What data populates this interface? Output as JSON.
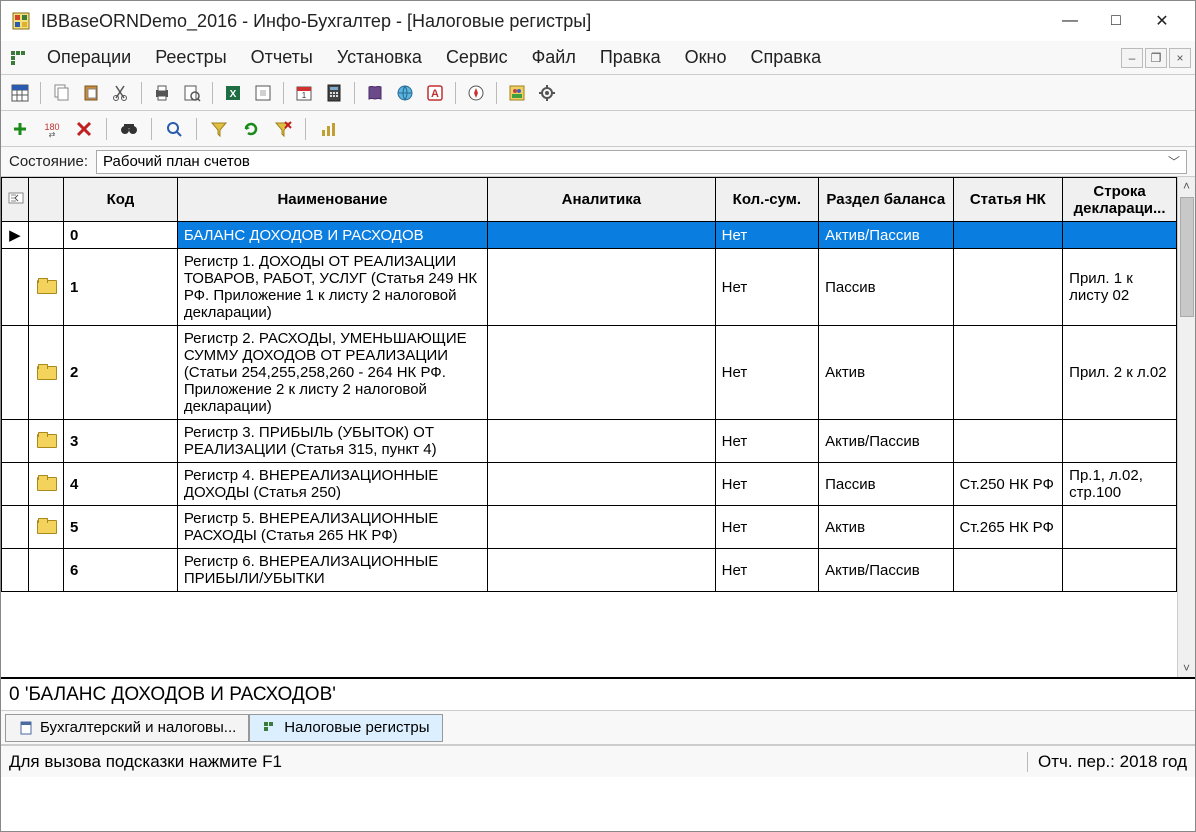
{
  "window": {
    "title": "IBBaseORNDemo_2016 - Инфо-Бухгалтер - [Налоговые регистры]"
  },
  "menu": {
    "items": [
      "Операции",
      "Реестры",
      "Отчеты",
      "Установка",
      "Сервис",
      "Файл",
      "Правка",
      "Окно",
      "Справка"
    ]
  },
  "state": {
    "label": "Состояние:",
    "value": "Рабочий план счетов"
  },
  "columns": {
    "code": "Код",
    "name": "Наименование",
    "analytics": "Аналитика",
    "kolsum": "Кол.-сум.",
    "section": "Раздел баланса",
    "article": "Статья НК",
    "line": "Строка деклараци..."
  },
  "rows": [
    {
      "indicator": "▶",
      "folder": false,
      "code": "0",
      "name": "БАЛАНС ДОХОДОВ И РАСХОДОВ",
      "analytics": "",
      "kolsum": "Нет",
      "section": "Актив/Пассив",
      "article": "",
      "line": "",
      "selected": true
    },
    {
      "indicator": "",
      "folder": true,
      "code": "1",
      "name": "Регистр 1. ДОХОДЫ ОТ РЕАЛИЗАЦИИ ТОВАРОВ, РАБОТ, УСЛУГ (Статья 249 НК РФ. Приложение 1 к листу 2 налоговой декларации)",
      "analytics": "",
      "kolsum": "Нет",
      "section": "Пассив",
      "article": "",
      "line": "Прил. 1 к листу 02"
    },
    {
      "indicator": "",
      "folder": true,
      "code": "2",
      "name": "Регистр 2. РАСХОДЫ, УМЕНЬШАЮЩИЕ СУММУ ДОХОДОВ ОТ РЕАЛИЗАЦИИ (Статьи 254,255,258,260 - 264 НК РФ. Приложение 2 к листу 2 налоговой декларации)",
      "analytics": "",
      "kolsum": "Нет",
      "section": "Актив",
      "article": "",
      "line": "Прил. 2 к л.02"
    },
    {
      "indicator": "",
      "folder": true,
      "code": "3",
      "name": "Регистр 3. ПРИБЫЛЬ (УБЫТОК) ОТ РЕАЛИЗАЦИИ (Статья 315, пункт 4)",
      "analytics": "",
      "kolsum": "Нет",
      "section": "Актив/Пассив",
      "article": "",
      "line": ""
    },
    {
      "indicator": "",
      "folder": true,
      "code": "4",
      "name": "Регистр 4. ВНЕРЕАЛИЗАЦИОННЫЕ ДОХОДЫ (Статья 250)",
      "analytics": "",
      "kolsum": "Нет",
      "section": "Пассив",
      "article": "Ст.250 НК РФ",
      "line": "Пр.1, л.02, стр.100"
    },
    {
      "indicator": "",
      "folder": true,
      "code": "5",
      "name": "Регистр 5. ВНЕРЕАЛИЗАЦИОННЫЕ РАСХОДЫ (Статья 265 НК РФ)",
      "analytics": "",
      "kolsum": "Нет",
      "section": "Актив",
      "article": "Ст.265 НК РФ",
      "line": ""
    },
    {
      "indicator": "",
      "folder": false,
      "code": "6",
      "name": "Регистр 6. ВНЕРЕАЛИЗАЦИОННЫЕ ПРИБЫЛИ/УБЫТКИ",
      "analytics": "",
      "kolsum": "Нет",
      "section": "Актив/Пассив",
      "article": "",
      "line": ""
    }
  ],
  "detail": "0 'БАЛАНС ДОХОДОВ И РАСХОДОВ'",
  "tabs": {
    "inactive": "Бухгалтерский и налоговы...",
    "active": "Налоговые регистры"
  },
  "status": {
    "hint": "Для вызова подсказки нажмите F1",
    "period": "Отч. пер.: 2018 год"
  },
  "colors": {
    "selection": "#0a7de0",
    "folder": "#f3d35c"
  }
}
